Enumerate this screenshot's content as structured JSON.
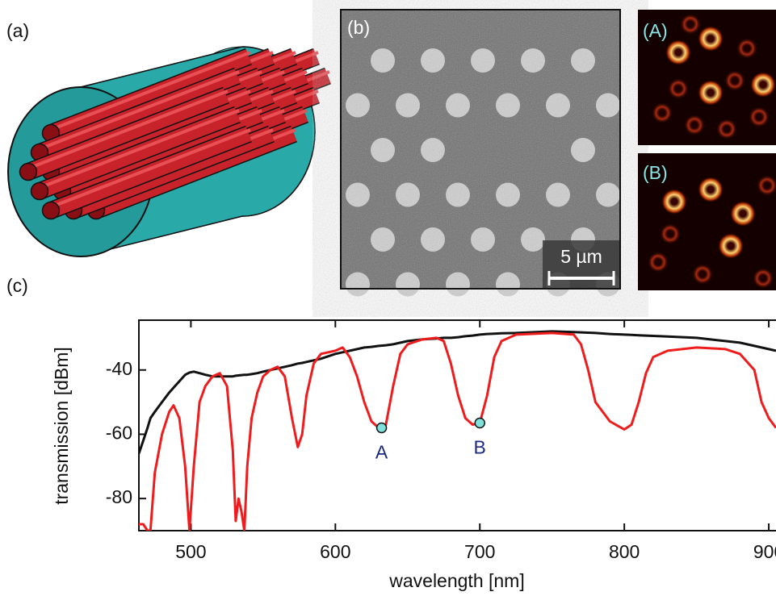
{
  "panel_labels": {
    "a": "(a)",
    "b": "(b)",
    "A": "(A)",
    "B": "(B)",
    "c": "(c)"
  },
  "scale_bar": "5 µm",
  "chart_data": {
    "type": "line",
    "x_label": "wavelength [nm]",
    "y_label": "transmission [dBm]",
    "x": [
      464,
      467,
      470,
      472,
      475,
      480,
      485,
      488,
      492,
      496,
      499,
      502,
      506,
      510,
      515,
      520,
      525,
      529,
      531,
      533,
      535,
      537,
      539,
      542,
      546,
      550,
      555,
      560,
      565,
      570,
      574,
      577,
      580,
      585,
      590,
      600,
      605,
      610,
      615,
      620,
      625,
      630,
      635,
      640,
      645,
      650,
      660,
      670,
      675,
      680,
      685,
      690,
      695,
      700,
      705,
      710,
      715,
      725,
      750,
      765,
      770,
      775,
      780,
      790,
      800,
      805,
      810,
      815,
      820,
      830,
      850,
      870,
      880,
      890,
      895,
      900,
      905
    ],
    "series": [
      {
        "name": "black",
        "color": "#111111",
        "values": [
          -66,
          -62,
          -58,
          -55,
          -53,
          -50,
          -47,
          -45.5,
          -43.5,
          -41.5,
          -40.8,
          -40.5,
          -41,
          -41.5,
          -42,
          -42,
          -42,
          -42,
          -41.8,
          -41.7,
          -41.6,
          -41.5,
          -41.5,
          -41.3,
          -41,
          -40.5,
          -40,
          -39.5,
          -39,
          -38.5,
          -38,
          -37.8,
          -37.5,
          -37,
          -36.5,
          -35,
          -34.5,
          -34,
          -33.5,
          -33,
          -32.8,
          -32.5,
          -32.3,
          -32,
          -31.5,
          -31,
          -30.5,
          -30.2,
          -30,
          -30,
          -29.8,
          -29.5,
          -29.3,
          -29,
          -28.8,
          -28.7,
          -28.6,
          -28.5,
          -28,
          -28.2,
          -28.3,
          -28.4,
          -28.5,
          -28.8,
          -29,
          -29.1,
          -29.2,
          -29.3,
          -29.4,
          -29.6,
          -30,
          -31,
          -31.5,
          -32.5,
          -33,
          -33.5,
          -34
        ]
      },
      {
        "name": "red",
        "color": "#ee1c1c",
        "values": [
          -88,
          -88,
          -90,
          -90,
          -72,
          -60,
          -53,
          -51,
          -55,
          -70,
          -90,
          -70,
          -50,
          -45,
          -42,
          -41,
          -45,
          -65,
          -87,
          -80,
          -84,
          -90,
          -70,
          -55,
          -47,
          -42,
          -40,
          -39,
          -42,
          -55,
          -64,
          -60,
          -48,
          -38,
          -35,
          -34,
          -33,
          -36,
          -42,
          -50,
          -56,
          -58,
          -57,
          -45,
          -35,
          -32,
          -30.5,
          -30,
          -31,
          -38,
          -48,
          -55,
          -57,
          -56.5,
          -48,
          -36,
          -31,
          -29,
          -28.5,
          -29,
          -32,
          -40,
          -50,
          -56,
          -58.5,
          -57,
          -50,
          -41,
          -36,
          -34,
          -33,
          -33.5,
          -35,
          -40,
          -50,
          -55,
          -58
        ]
      }
    ],
    "points": [
      {
        "label": "A",
        "x": 632,
        "y": -58
      },
      {
        "label": "B",
        "x": 700,
        "y": -56.5
      }
    ],
    "point_color": "#7fe0dc",
    "xlim": [
      464,
      905
    ],
    "ylim": [
      -90,
      -24.5
    ],
    "xticks": [
      500,
      600,
      700,
      800,
      900
    ],
    "yticks": [
      -40,
      -60,
      -80
    ]
  }
}
